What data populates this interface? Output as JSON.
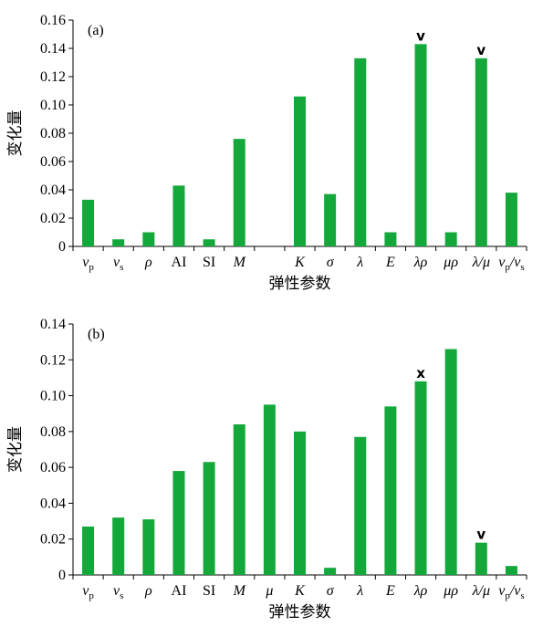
{
  "colors": {
    "bar": "#14a83b",
    "axis": "#000000"
  },
  "chart_data": [
    {
      "type": "bar",
      "panel_label": "(a)",
      "ylabel": "变化量",
      "xlabel": "弹性参数",
      "ylim": [
        0,
        0.16
      ],
      "yticks": [
        "0",
        "0.02",
        "0.04",
        "0.06",
        "0.08",
        "0.10",
        "0.12",
        "0.14",
        "0.16"
      ],
      "categories": [
        {
          "main": "v",
          "sub": "p",
          "italic": true
        },
        {
          "main": "v",
          "sub": "s",
          "italic": true
        },
        {
          "main": "ρ",
          "italic": true
        },
        {
          "main": "AI",
          "italic": false
        },
        {
          "main": "SI",
          "italic": false
        },
        {
          "main": "M",
          "italic": true
        },
        {
          "main": "",
          "italic": false
        },
        {
          "main": "K",
          "italic": true
        },
        {
          "main": "σ",
          "italic": true
        },
        {
          "main": "λ",
          "italic": true
        },
        {
          "main": "E",
          "italic": true
        },
        {
          "main": "λρ",
          "italic": true
        },
        {
          "main": "μρ",
          "italic": true
        },
        {
          "main": "λ/μ",
          "italic": true
        },
        {
          "main": "v",
          "sub": "p",
          "mid": "/v",
          "sub2": "s",
          "italic": true
        }
      ],
      "values": [
        0.033,
        0.005,
        0.01,
        0.043,
        0.005,
        0.076,
        null,
        0.106,
        0.037,
        0.133,
        0.01,
        0.143,
        0.01,
        0.133,
        0.038
      ],
      "marks": [
        {
          "index": 11,
          "symbol": "v"
        },
        {
          "index": 13,
          "symbol": "v"
        }
      ]
    },
    {
      "type": "bar",
      "panel_label": "(b)",
      "ylabel": "变化量",
      "xlabel": "弹性参数",
      "ylim": [
        0,
        0.14
      ],
      "yticks": [
        "0",
        "0.02",
        "0.04",
        "0.06",
        "0.08",
        "0.10",
        "0.12",
        "0.14"
      ],
      "categories": [
        {
          "main": "v",
          "sub": "p",
          "italic": true
        },
        {
          "main": "v",
          "sub": "s",
          "italic": true
        },
        {
          "main": "ρ",
          "italic": true
        },
        {
          "main": "AI",
          "italic": false
        },
        {
          "main": "SI",
          "italic": false
        },
        {
          "main": "M",
          "italic": true
        },
        {
          "main": "μ",
          "italic": true
        },
        {
          "main": "K",
          "italic": true
        },
        {
          "main": "σ",
          "italic": true
        },
        {
          "main": "λ",
          "italic": true
        },
        {
          "main": "E",
          "italic": true
        },
        {
          "main": "λρ",
          "italic": true
        },
        {
          "main": "μρ",
          "italic": true
        },
        {
          "main": "λ/μ",
          "italic": true
        },
        {
          "main": "v",
          "sub": "p",
          "mid": "/v",
          "sub2": "s",
          "italic": true
        }
      ],
      "values": [
        0.027,
        0.032,
        0.031,
        0.058,
        0.063,
        0.084,
        0.095,
        0.08,
        0.004,
        0.077,
        0.094,
        0.108,
        0.126,
        0.018,
        0.005
      ],
      "marks": [
        {
          "index": 11,
          "symbol": "x"
        },
        {
          "index": 13,
          "symbol": "v"
        }
      ]
    }
  ]
}
